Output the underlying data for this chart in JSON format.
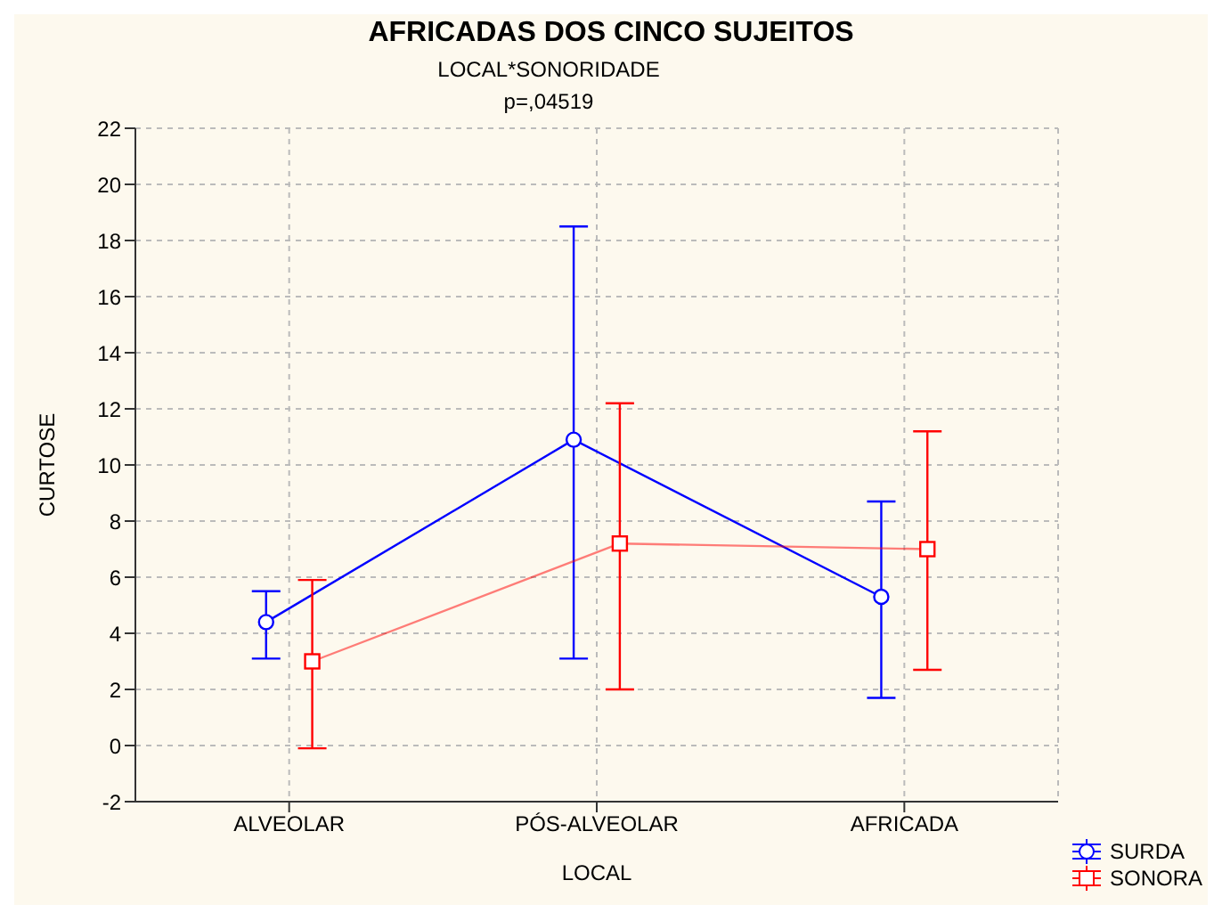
{
  "chart_data": {
    "type": "line",
    "title": "AFRICADAS DOS CINCO SUJEITOS",
    "subtitle": "LOCAL*SONORIDADE",
    "annotations": [
      "p=,04519"
    ],
    "xlabel": "LOCAL",
    "ylabel": "CURTOSE",
    "categories": [
      "ALVEOLAR",
      "PÓS-ALVEOLAR",
      "AFRICADA"
    ],
    "series": [
      {
        "name": "SURDA",
        "color": "#0000ff",
        "marker": "circle",
        "values": [
          4.4,
          10.9,
          5.3
        ],
        "errors": [
          [
            3.1,
            5.5
          ],
          [
            3.1,
            18.5
          ],
          [
            1.7,
            8.7
          ]
        ]
      },
      {
        "name": "SONORA",
        "color": "#ff0000",
        "marker": "square",
        "values": [
          3.0,
          7.2,
          7.0
        ],
        "errors": [
          [
            -0.1,
            5.9
          ],
          [
            2.0,
            12.2
          ],
          [
            2.7,
            11.2
          ]
        ]
      }
    ],
    "ylim": [
      -2,
      22
    ],
    "yticks": [
      -2,
      0,
      2,
      4,
      6,
      8,
      10,
      12,
      14,
      16,
      18,
      20,
      22
    ],
    "grid": true,
    "legend": "bottom right",
    "line_style": "solid"
  }
}
